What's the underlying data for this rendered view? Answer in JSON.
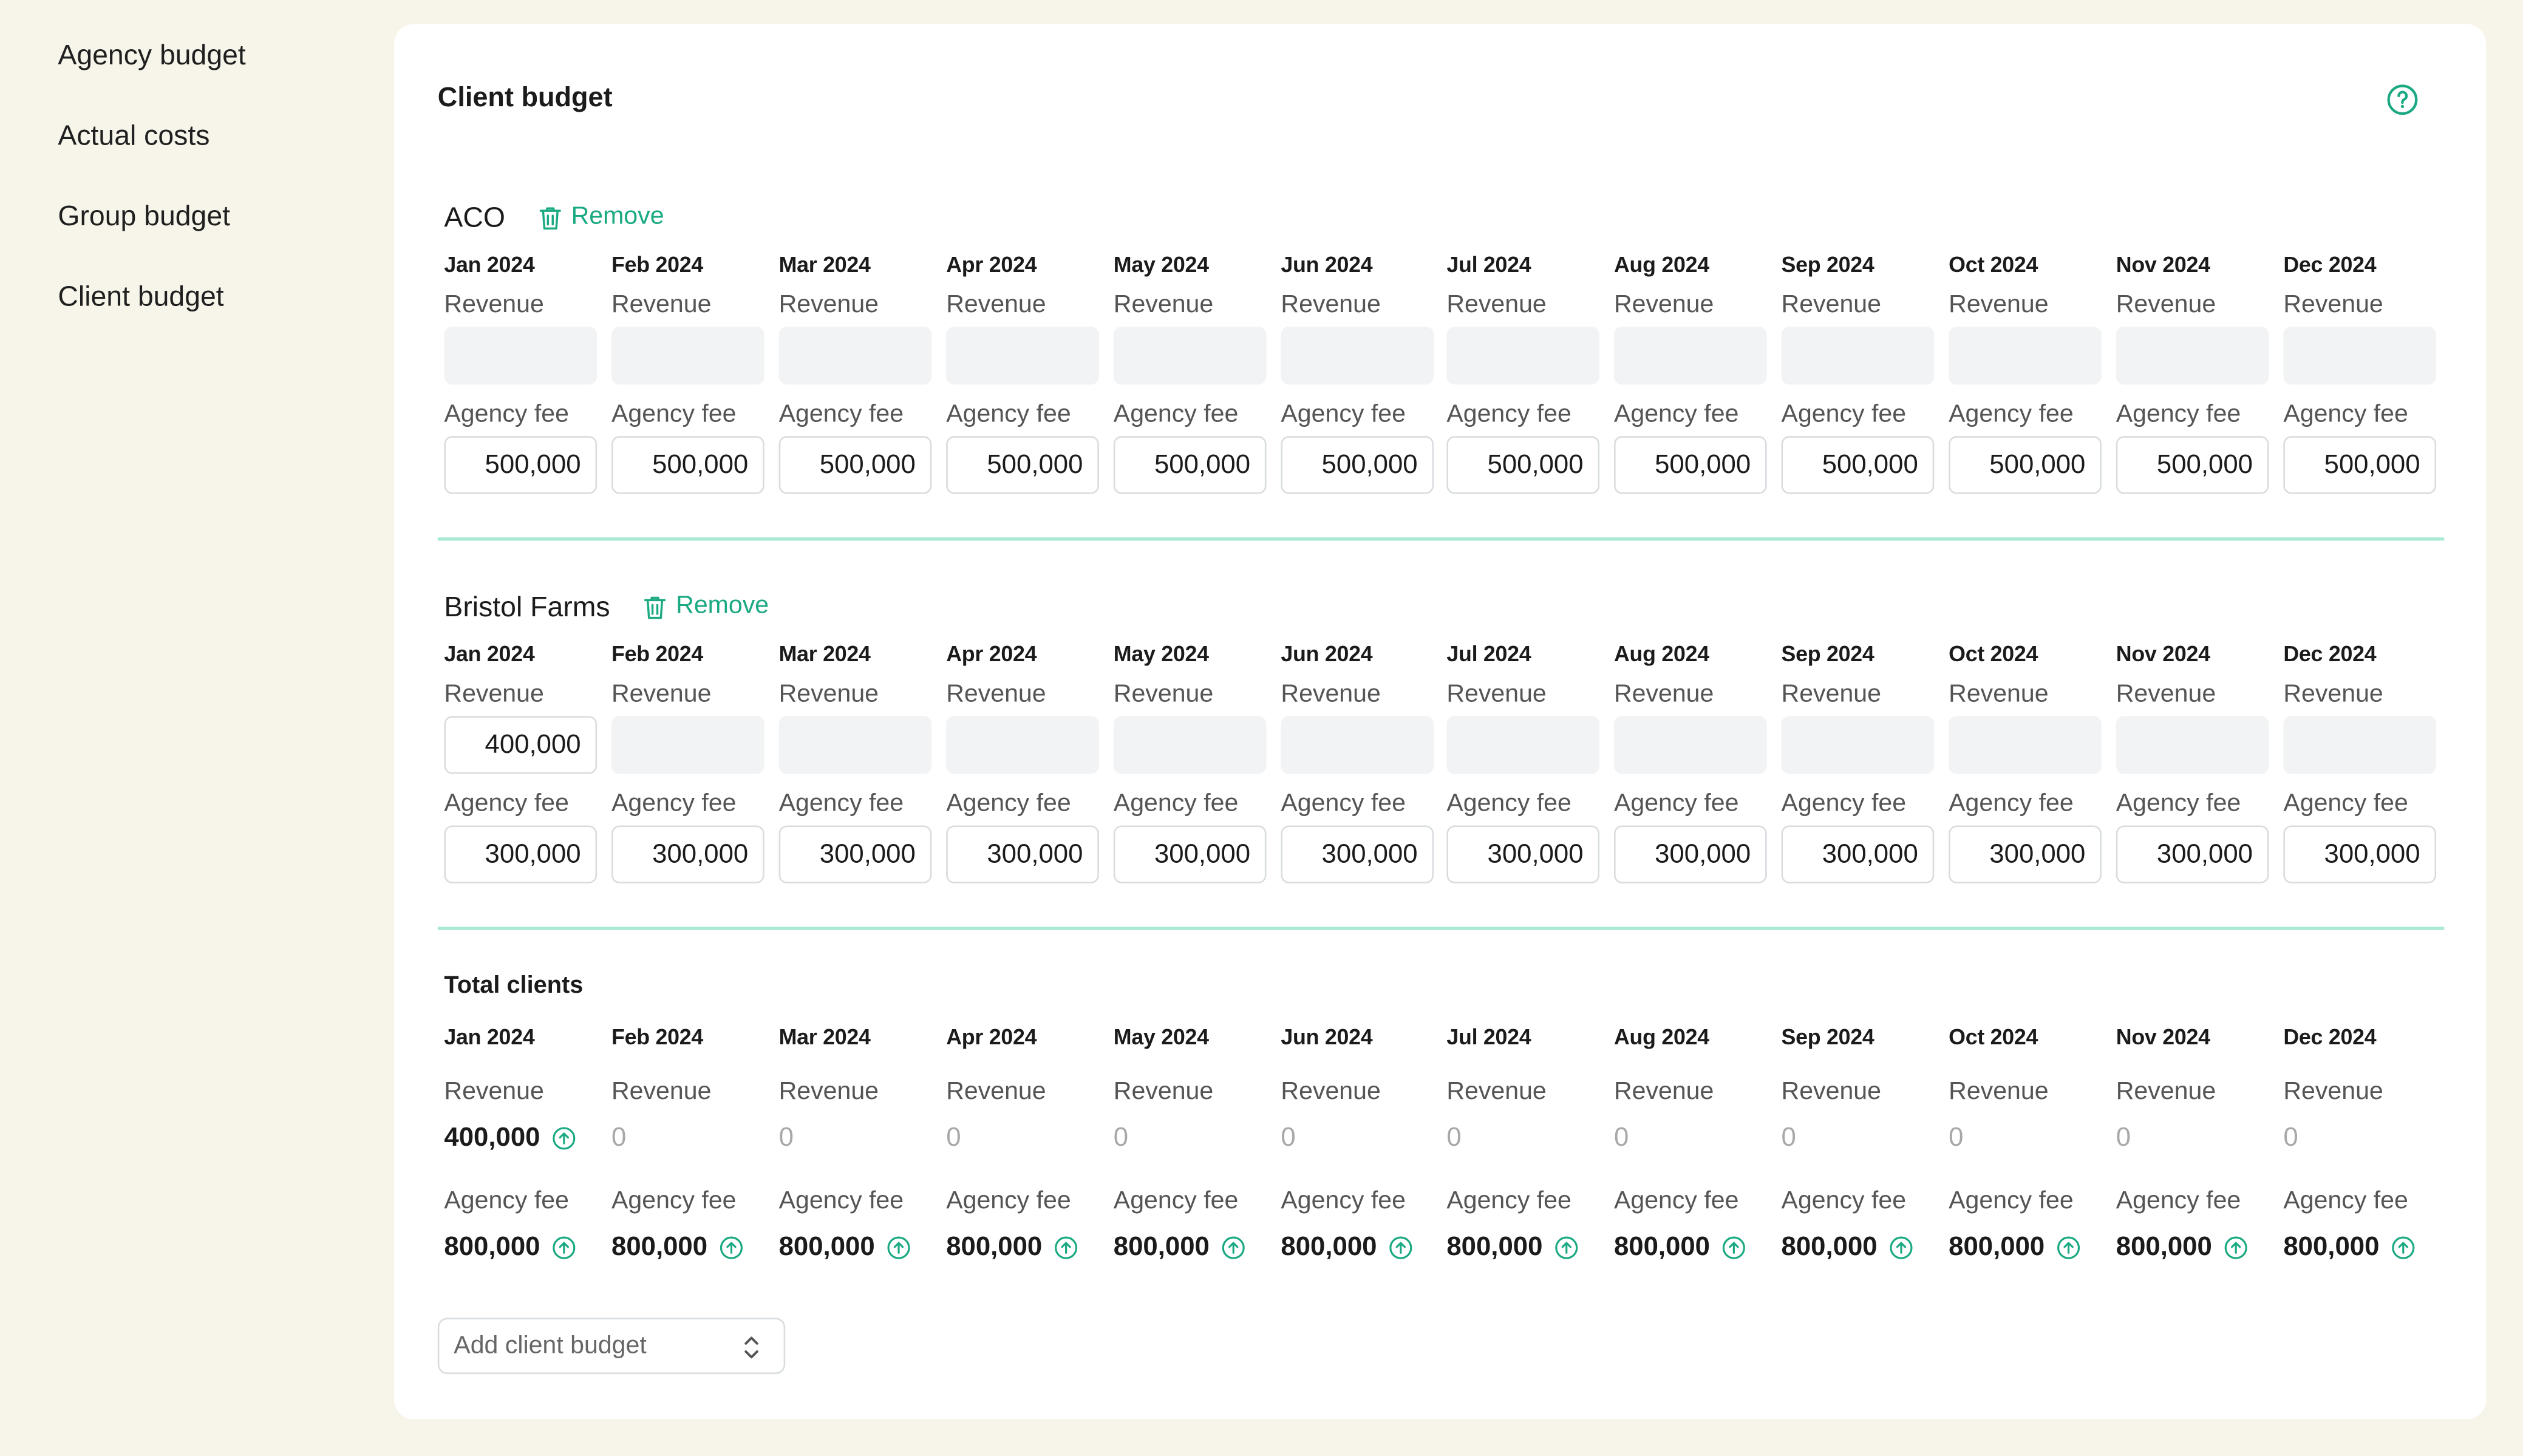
{
  "sidebar": {
    "items": [
      {
        "label": "Agency budget"
      },
      {
        "label": "Actual costs"
      },
      {
        "label": "Group budget"
      },
      {
        "label": "Client budget"
      }
    ]
  },
  "card": {
    "title": "Client budget",
    "help_icon": "question-circle-icon"
  },
  "remove_label": "Remove",
  "months": [
    "Jan 2024",
    "Feb 2024",
    "Mar 2024",
    "Apr 2024",
    "May 2024",
    "Jun 2024",
    "Jul 2024",
    "Aug 2024",
    "Sep 2024",
    "Oct 2024",
    "Nov 2024",
    "Dec 2024"
  ],
  "labels": {
    "revenue": "Revenue",
    "agency_fee": "Agency fee"
  },
  "clients": [
    {
      "name": "ACO",
      "revenue": [
        "",
        "",
        "",
        "",
        "",
        "",
        "",
        "",
        "",
        "",
        "",
        ""
      ],
      "agency_fee": [
        "500,000",
        "500,000",
        "500,000",
        "500,000",
        "500,000",
        "500,000",
        "500,000",
        "500,000",
        "500,000",
        "500,000",
        "500,000",
        "500,000"
      ]
    },
    {
      "name": "Bristol Farms",
      "revenue": [
        "400,000",
        "",
        "",
        "",
        "",
        "",
        "",
        "",
        "",
        "",
        "",
        ""
      ],
      "agency_fee": [
        "300,000",
        "300,000",
        "300,000",
        "300,000",
        "300,000",
        "300,000",
        "300,000",
        "300,000",
        "300,000",
        "300,000",
        "300,000",
        "300,000"
      ]
    }
  ],
  "totals": {
    "title": "Total clients",
    "revenue": [
      "400,000",
      "0",
      "0",
      "0",
      "0",
      "0",
      "0",
      "0",
      "0",
      "0",
      "0",
      "0"
    ],
    "agency_fee": [
      "800,000",
      "800,000",
      "800,000",
      "800,000",
      "800,000",
      "800,000",
      "800,000",
      "800,000",
      "800,000",
      "800,000",
      "800,000",
      "800,000"
    ]
  },
  "add_select": {
    "placeholder": "Add client budget"
  },
  "colors": {
    "accent": "#1aa982",
    "divider": "#a8ead4",
    "background": "#f7f5ea"
  }
}
